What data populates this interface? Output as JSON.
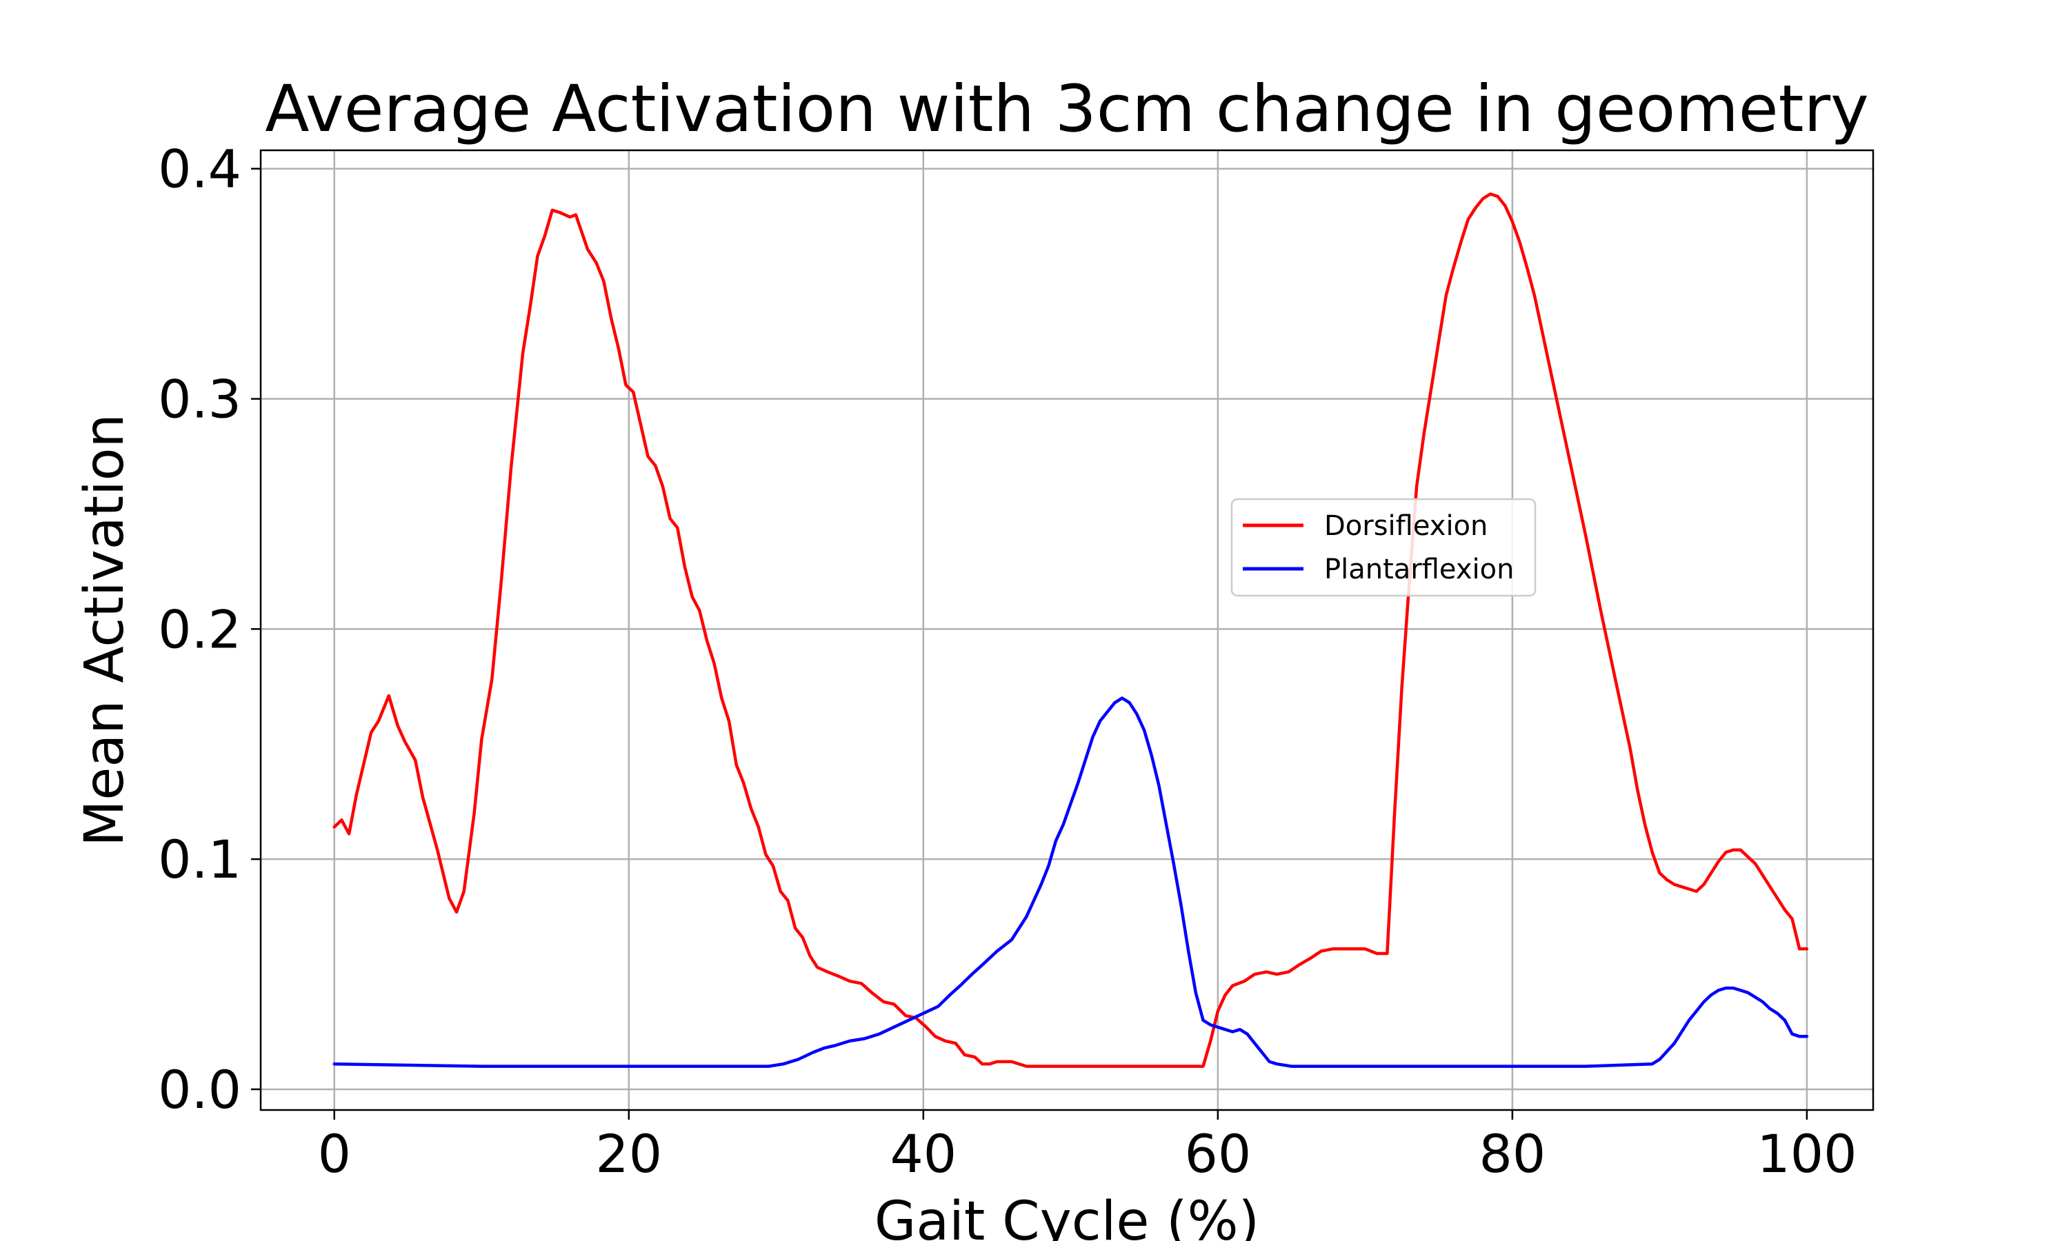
{
  "chart_data": {
    "type": "line",
    "title": "Average Activation with 3cm change in geometry",
    "xlabel": "Gait Cycle (%)",
    "ylabel": "Mean Activation",
    "xlim": [
      -5,
      104.5
    ],
    "ylim": [
      -0.009,
      0.408
    ],
    "xticks": [
      0,
      20,
      40,
      60,
      80,
      100
    ],
    "yticks": [
      0.0,
      0.1,
      0.2,
      0.3,
      0.4
    ],
    "xtick_labels": [
      "0",
      "20",
      "40",
      "60",
      "80",
      "100"
    ],
    "ytick_labels": [
      "0.0",
      "0.1",
      "0.2",
      "0.3",
      "0.4"
    ],
    "grid": true,
    "legend": "center-right",
    "series": [
      {
        "name": "Dorsiflexion",
        "color": "#ff0000",
        "points": [
          [
            0,
            0.114
          ],
          [
            0.5,
            0.117
          ],
          [
            1,
            0.111
          ],
          [
            1.5,
            0.128
          ],
          [
            2.5,
            0.155
          ],
          [
            3,
            0.16
          ],
          [
            3.7,
            0.171
          ],
          [
            4.3,
            0.158
          ],
          [
            4.8,
            0.151
          ],
          [
            5.5,
            0.143
          ],
          [
            6,
            0.127
          ],
          [
            7,
            0.104
          ],
          [
            7.8,
            0.083
          ],
          [
            8.3,
            0.077
          ],
          [
            8.8,
            0.086
          ],
          [
            9.5,
            0.12
          ],
          [
            10,
            0.152
          ],
          [
            10.7,
            0.178
          ],
          [
            11.3,
            0.218
          ],
          [
            12,
            0.27
          ],
          [
            12.8,
            0.32
          ],
          [
            13.3,
            0.34
          ],
          [
            13.8,
            0.362
          ],
          [
            14.3,
            0.371
          ],
          [
            14.8,
            0.382
          ],
          [
            15.3,
            0.381
          ],
          [
            16,
            0.379
          ],
          [
            16.4,
            0.38
          ],
          [
            17.2,
            0.365
          ],
          [
            17.8,
            0.359
          ],
          [
            18.3,
            0.351
          ],
          [
            18.8,
            0.335
          ],
          [
            19.3,
            0.322
          ],
          [
            19.8,
            0.306
          ],
          [
            20.3,
            0.303
          ],
          [
            20.8,
            0.289
          ],
          [
            21.3,
            0.275
          ],
          [
            21.8,
            0.271
          ],
          [
            22.3,
            0.262
          ],
          [
            22.8,
            0.248
          ],
          [
            23.3,
            0.244
          ],
          [
            23.8,
            0.227
          ],
          [
            24.3,
            0.214
          ],
          [
            24.8,
            0.208
          ],
          [
            25.3,
            0.195
          ],
          [
            25.8,
            0.185
          ],
          [
            26.3,
            0.17
          ],
          [
            26.8,
            0.16
          ],
          [
            27.3,
            0.141
          ],
          [
            27.8,
            0.133
          ],
          [
            28.3,
            0.122
          ],
          [
            28.8,
            0.114
          ],
          [
            29.3,
            0.102
          ],
          [
            29.8,
            0.097
          ],
          [
            30.3,
            0.086
          ],
          [
            30.8,
            0.082
          ],
          [
            31.3,
            0.07
          ],
          [
            31.8,
            0.066
          ],
          [
            32.3,
            0.058
          ],
          [
            32.8,
            0.053
          ],
          [
            33.5,
            0.051
          ],
          [
            34.3,
            0.049
          ],
          [
            35,
            0.047
          ],
          [
            35.8,
            0.046
          ],
          [
            36.5,
            0.042
          ],
          [
            37.3,
            0.038
          ],
          [
            38,
            0.037
          ],
          [
            38.8,
            0.032
          ],
          [
            39.5,
            0.031
          ],
          [
            40.2,
            0.027
          ],
          [
            40.8,
            0.023
          ],
          [
            41.5,
            0.021
          ],
          [
            42.2,
            0.02
          ],
          [
            42.8,
            0.015
          ],
          [
            43.5,
            0.014
          ],
          [
            44,
            0.011
          ],
          [
            44.5,
            0.011
          ],
          [
            45,
            0.012
          ],
          [
            46,
            0.012
          ],
          [
            47,
            0.01
          ],
          [
            50,
            0.01
          ],
          [
            55,
            0.01
          ],
          [
            59,
            0.01
          ],
          [
            59.5,
            0.021
          ],
          [
            60,
            0.034
          ],
          [
            60.5,
            0.041
          ],
          [
            61,
            0.045
          ],
          [
            61.8,
            0.047
          ],
          [
            62.5,
            0.05
          ],
          [
            63.3,
            0.051
          ],
          [
            64,
            0.05
          ],
          [
            64.8,
            0.051
          ],
          [
            65.5,
            0.054
          ],
          [
            66.3,
            0.057
          ],
          [
            67,
            0.06
          ],
          [
            67.8,
            0.061
          ],
          [
            68.5,
            0.061
          ],
          [
            69.3,
            0.061
          ],
          [
            70,
            0.061
          ],
          [
            70.8,
            0.059
          ],
          [
            71.5,
            0.059
          ],
          [
            72,
            0.12
          ],
          [
            72.5,
            0.175
          ],
          [
            73,
            0.22
          ],
          [
            73.5,
            0.262
          ],
          [
            74,
            0.285
          ],
          [
            74.5,
            0.305
          ],
          [
            75,
            0.325
          ],
          [
            75.5,
            0.345
          ],
          [
            76,
            0.357
          ],
          [
            76.5,
            0.368
          ],
          [
            77,
            0.378
          ],
          [
            77.5,
            0.383
          ],
          [
            78,
            0.387
          ],
          [
            78.5,
            0.389
          ],
          [
            79,
            0.388
          ],
          [
            79.5,
            0.384
          ],
          [
            80,
            0.377
          ],
          [
            80.5,
            0.368
          ],
          [
            81,
            0.357
          ],
          [
            81.5,
            0.345
          ],
          [
            82,
            0.33
          ],
          [
            83,
            0.3
          ],
          [
            84,
            0.27
          ],
          [
            85,
            0.24
          ],
          [
            86,
            0.208
          ],
          [
            87,
            0.178
          ],
          [
            88,
            0.148
          ],
          [
            88.5,
            0.13
          ],
          [
            89,
            0.115
          ],
          [
            89.5,
            0.103
          ],
          [
            90,
            0.094
          ],
          [
            90.5,
            0.091
          ],
          [
            91,
            0.089
          ],
          [
            91.5,
            0.088
          ],
          [
            92,
            0.087
          ],
          [
            92.5,
            0.086
          ],
          [
            93,
            0.089
          ],
          [
            93.5,
            0.094
          ],
          [
            94,
            0.099
          ],
          [
            94.5,
            0.103
          ],
          [
            95,
            0.104
          ],
          [
            95.5,
            0.104
          ],
          [
            96,
            0.101
          ],
          [
            96.5,
            0.098
          ],
          [
            97,
            0.093
          ],
          [
            97.5,
            0.088
          ],
          [
            98,
            0.083
          ],
          [
            98.5,
            0.078
          ],
          [
            99,
            0.074
          ],
          [
            99.5,
            0.061
          ],
          [
            100,
            0.061
          ]
        ]
      },
      {
        "name": "Plantarflexion",
        "color": "#0000ff",
        "points": [
          [
            0,
            0.011
          ],
          [
            10,
            0.01
          ],
          [
            20,
            0.01
          ],
          [
            29.5,
            0.01
          ],
          [
            30.5,
            0.011
          ],
          [
            31.5,
            0.013
          ],
          [
            32.5,
            0.016
          ],
          [
            33.3,
            0.018
          ],
          [
            34,
            0.019
          ],
          [
            35,
            0.021
          ],
          [
            36,
            0.022
          ],
          [
            37,
            0.024
          ],
          [
            38,
            0.027
          ],
          [
            39,
            0.03
          ],
          [
            40,
            0.033
          ],
          [
            41,
            0.036
          ],
          [
            41.8,
            0.041
          ],
          [
            42.5,
            0.045
          ],
          [
            43.3,
            0.05
          ],
          [
            44,
            0.054
          ],
          [
            45,
            0.06
          ],
          [
            46,
            0.065
          ],
          [
            47,
            0.075
          ],
          [
            47.5,
            0.082
          ],
          [
            48,
            0.089
          ],
          [
            48.5,
            0.097
          ],
          [
            49,
            0.108
          ],
          [
            49.5,
            0.115
          ],
          [
            50,
            0.124
          ],
          [
            50.5,
            0.133
          ],
          [
            51,
            0.143
          ],
          [
            51.5,
            0.153
          ],
          [
            52,
            0.16
          ],
          [
            52.5,
            0.164
          ],
          [
            53,
            0.168
          ],
          [
            53.5,
            0.17
          ],
          [
            54,
            0.168
          ],
          [
            54.5,
            0.163
          ],
          [
            55,
            0.156
          ],
          [
            55.5,
            0.145
          ],
          [
            56,
            0.132
          ],
          [
            56.5,
            0.115
          ],
          [
            57,
            0.098
          ],
          [
            57.5,
            0.08
          ],
          [
            58,
            0.06
          ],
          [
            58.5,
            0.042
          ],
          [
            59,
            0.03
          ],
          [
            59.5,
            0.028
          ],
          [
            60,
            0.027
          ],
          [
            60.5,
            0.026
          ],
          [
            61,
            0.025
          ],
          [
            61.5,
            0.026
          ],
          [
            62,
            0.024
          ],
          [
            62.5,
            0.02
          ],
          [
            63,
            0.016
          ],
          [
            63.5,
            0.012
          ],
          [
            64,
            0.011
          ],
          [
            65,
            0.01
          ],
          [
            75,
            0.01
          ],
          [
            85,
            0.01
          ],
          [
            89.5,
            0.011
          ],
          [
            90,
            0.013
          ],
          [
            91,
            0.02
          ],
          [
            92,
            0.03
          ],
          [
            92.5,
            0.034
          ],
          [
            93,
            0.038
          ],
          [
            93.5,
            0.041
          ],
          [
            94,
            0.043
          ],
          [
            94.5,
            0.044
          ],
          [
            95,
            0.044
          ],
          [
            95.5,
            0.043
          ],
          [
            96,
            0.042
          ],
          [
            96.5,
            0.04
          ],
          [
            97,
            0.038
          ],
          [
            97.5,
            0.035
          ],
          [
            98,
            0.033
          ],
          [
            98.5,
            0.03
          ],
          [
            99,
            0.024
          ],
          [
            99.5,
            0.023
          ],
          [
            100,
            0.023
          ]
        ]
      }
    ]
  }
}
